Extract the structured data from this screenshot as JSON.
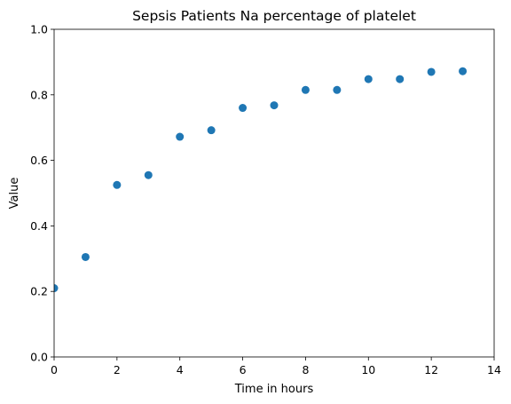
{
  "chart_data": {
    "type": "scatter",
    "title": "Sepsis Patients Na percentage of platelet",
    "xlabel": "Time in hours",
    "ylabel": "Value",
    "xlim": [
      0,
      14
    ],
    "ylim": [
      0,
      1
    ],
    "xticks": [
      0,
      2,
      4,
      6,
      8,
      10,
      12,
      14
    ],
    "yticks": [
      0.0,
      0.2,
      0.4,
      0.6,
      0.8,
      1.0
    ],
    "xtick_labels": [
      "0",
      "2",
      "4",
      "6",
      "8",
      "10",
      "12",
      "14"
    ],
    "ytick_labels": [
      "0.0",
      "0.2",
      "0.4",
      "0.6",
      "0.8",
      "1.0"
    ],
    "grid": false,
    "legend": "none",
    "marker_color": "#1f77b4",
    "x": [
      0,
      1,
      2,
      3,
      4,
      5,
      6,
      7,
      8,
      9,
      10,
      11,
      12,
      13
    ],
    "y": [
      0.21,
      0.305,
      0.525,
      0.555,
      0.672,
      0.692,
      0.76,
      0.768,
      0.815,
      0.815,
      0.848,
      0.848,
      0.87,
      0.872
    ]
  }
}
